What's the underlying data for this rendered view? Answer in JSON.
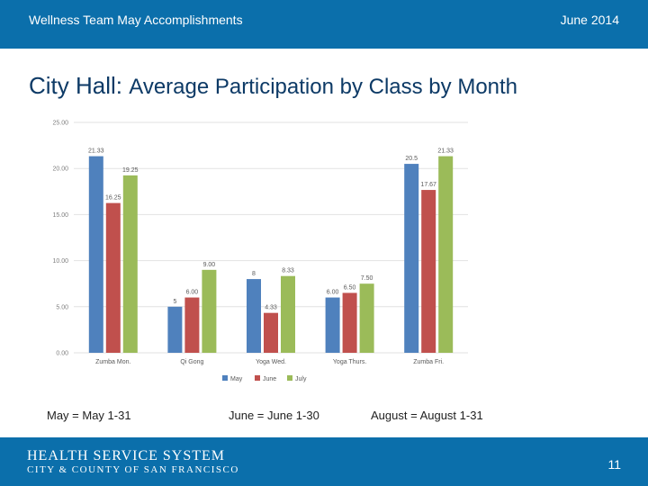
{
  "header": {
    "left_text": "Wellness Team May Accomplishments",
    "right_text": "June 2014"
  },
  "title": {
    "place": "City Hall:",
    "rest": "Average Participation by Class by Month"
  },
  "notes": [
    "May = May 1-31",
    "June = June 1-30",
    "August = August 1-31"
  ],
  "footer": {
    "org_name": "HEALTH SERVICE SYSTEM",
    "org_sub": "CITY & COUNTY OF SAN FRANCISCO",
    "page_number": "11"
  },
  "colors": {
    "brand_blue": "#0b6fab",
    "title_navy": "#0d3a66"
  },
  "chart_data": {
    "type": "bar",
    "categories": [
      "Zumba Mon.",
      "Qi Gong",
      "Yoga Wed.",
      "Yoga Thurs.",
      "Zumba Fri."
    ],
    "series": [
      {
        "name": "May",
        "color": "#4f81bd",
        "values": [
          21.33,
          5,
          8,
          6.0,
          20.5
        ],
        "labels": [
          "21.33",
          "5",
          "8",
          "6.00",
          "20.5"
        ]
      },
      {
        "name": "June",
        "color": "#c0504d",
        "values": [
          16.25,
          6.0,
          4.33,
          6.5,
          17.67
        ],
        "labels": [
          "16.25",
          "6.00",
          "4.33",
          "6.50",
          "17.67"
        ]
      },
      {
        "name": "July",
        "color": "#9bbb59",
        "values": [
          19.25,
          9.0,
          8.33,
          7.5,
          21.33
        ],
        "labels": [
          "19.25",
          "9.00",
          "8.33",
          "7.50",
          "21.33"
        ]
      }
    ],
    "y_ticks": [
      "0.00",
      "5.00",
      "10.00",
      "15.00",
      "20.00",
      "25.00"
    ],
    "ylim": [
      0,
      25
    ],
    "grid": true,
    "legend_position": "bottom"
  }
}
